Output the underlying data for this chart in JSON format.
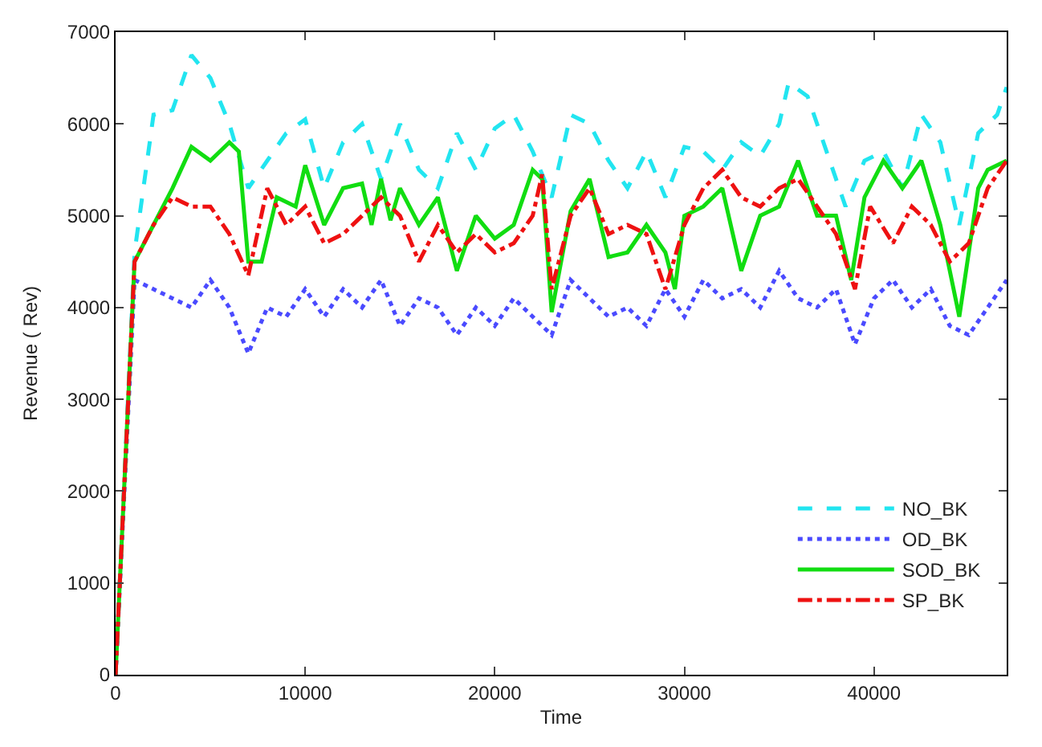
{
  "chart_data": {
    "type": "line",
    "xlabel": "Time",
    "ylabel": "Revenue ( Rev)",
    "xlim": [
      0,
      47000
    ],
    "xticks": [
      0,
      10000,
      20000,
      30000,
      40000
    ],
    "ylim": [
      0,
      7000
    ],
    "yticks": [
      0,
      1000,
      2000,
      3000,
      4000,
      5000,
      6000,
      7000
    ],
    "legend": "bottom right",
    "marker": "none",
    "series": [
      {
        "name": "NO_BK",
        "color": "#22e5f0",
        "line_style": "dashed",
        "x": [
          0,
          1000,
          2000,
          3000,
          4000,
          5000,
          6000,
          7000,
          8000,
          9000,
          10000,
          11000,
          12000,
          13000,
          14000,
          15000,
          16000,
          17000,
          18000,
          19000,
          20000,
          21000,
          22000,
          23000,
          24000,
          25000,
          26000,
          27000,
          28000,
          29000,
          30000,
          31000,
          32000,
          33000,
          34000,
          35000,
          35500,
          36500,
          37500,
          38500,
          39500,
          40500,
          41500,
          42500,
          43500,
          44500,
          45500,
          46500,
          47000
        ],
        "values": [
          0,
          4600,
          6100,
          6150,
          6750,
          6500,
          6000,
          5300,
          5600,
          5900,
          6050,
          5300,
          5800,
          6000,
          5400,
          6000,
          5500,
          5300,
          5900,
          5500,
          5950,
          6100,
          5700,
          5200,
          6100,
          6000,
          5600,
          5300,
          5700,
          5200,
          5750,
          5700,
          5500,
          5800,
          5650,
          6000,
          6450,
          6300,
          5700,
          5100,
          5600,
          5700,
          5300,
          6100,
          5800,
          4900,
          5900,
          6100,
          6400
        ]
      },
      {
        "name": "OD_BK",
        "color": "#4a4aff",
        "line_style": "dotted",
        "x": [
          0,
          1000,
          2000,
          3000,
          4000,
          5000,
          6000,
          7000,
          8000,
          9000,
          10000,
          11000,
          12000,
          13000,
          14000,
          15000,
          16000,
          17000,
          18000,
          19000,
          20000,
          21000,
          22000,
          23000,
          24000,
          25000,
          26000,
          27000,
          28000,
          29000,
          30000,
          31000,
          32000,
          33000,
          34000,
          35000,
          36000,
          37000,
          38000,
          39000,
          40000,
          41000,
          42000,
          43000,
          44000,
          45000,
          46000,
          47000
        ],
        "values": [
          0,
          4300,
          4200,
          4100,
          4000,
          4300,
          4000,
          3500,
          4000,
          3900,
          4200,
          3900,
          4200,
          4000,
          4300,
          3800,
          4100,
          4000,
          3700,
          4000,
          3800,
          4100,
          3900,
          3700,
          4300,
          4100,
          3900,
          4000,
          3800,
          4200,
          3900,
          4300,
          4100,
          4200,
          4000,
          4400,
          4100,
          4000,
          4200,
          3600,
          4100,
          4300,
          4000,
          4200,
          3800,
          3700,
          4000,
          4300
        ]
      },
      {
        "name": "SOD_BK",
        "color": "#11dd11",
        "line_style": "solid",
        "x": [
          0,
          1000,
          2000,
          3000,
          4000,
          5000,
          6000,
          6500,
          7000,
          7700,
          8500,
          9500,
          10000,
          11000,
          12000,
          13000,
          13500,
          14000,
          14500,
          15000,
          16000,
          17000,
          18000,
          19000,
          20000,
          21000,
          22000,
          22500,
          23000,
          24000,
          25000,
          26000,
          27000,
          28000,
          29000,
          29500,
          30000,
          31000,
          32000,
          33000,
          34000,
          35000,
          36000,
          37000,
          38000,
          38800,
          39500,
          40500,
          41500,
          42500,
          43500,
          44500,
          45500,
          46000,
          47000
        ],
        "values": [
          0,
          4500,
          4900,
          5300,
          5750,
          5600,
          5800,
          5700,
          4500,
          4500,
          5200,
          5100,
          5550,
          4900,
          5300,
          5350,
          4900,
          5400,
          4950,
          5300,
          4900,
          5200,
          4400,
          5000,
          4750,
          4900,
          5500,
          5400,
          3950,
          5050,
          5400,
          4550,
          4600,
          4900,
          4600,
          4200,
          5000,
          5100,
          5300,
          4400,
          5000,
          5100,
          5600,
          5000,
          5000,
          4300,
          5200,
          5600,
          5300,
          5600,
          4900,
          3900,
          5300,
          5500,
          5600
        ]
      },
      {
        "name": "SP_BK",
        "color": "#ee1111",
        "line_style": "dashdot",
        "x": [
          0,
          1000,
          2000,
          3000,
          4000,
          5000,
          6000,
          7000,
          8000,
          9000,
          10000,
          11000,
          12000,
          13000,
          14000,
          15000,
          16000,
          17000,
          18000,
          19000,
          20000,
          21000,
          22000,
          22500,
          23000,
          24000,
          25000,
          26000,
          27000,
          28000,
          29000,
          30000,
          31000,
          32000,
          33000,
          34000,
          35000,
          36000,
          37000,
          38000,
          39000,
          39800,
          41000,
          42000,
          43000,
          44000,
          45000,
          46000,
          47000
        ],
        "values": [
          0,
          4500,
          4900,
          5200,
          5100,
          5100,
          4800,
          4350,
          5300,
          4900,
          5100,
          4700,
          4800,
          5000,
          5200,
          5000,
          4500,
          4900,
          4600,
          4800,
          4600,
          4700,
          5000,
          5450,
          4200,
          5000,
          5300,
          4800,
          4900,
          4800,
          4200,
          4900,
          5300,
          5500,
          5200,
          5100,
          5300,
          5400,
          5100,
          4800,
          4200,
          5100,
          4700,
          5100,
          4900,
          4500,
          4700,
          5300,
          5600
        ]
      }
    ]
  }
}
